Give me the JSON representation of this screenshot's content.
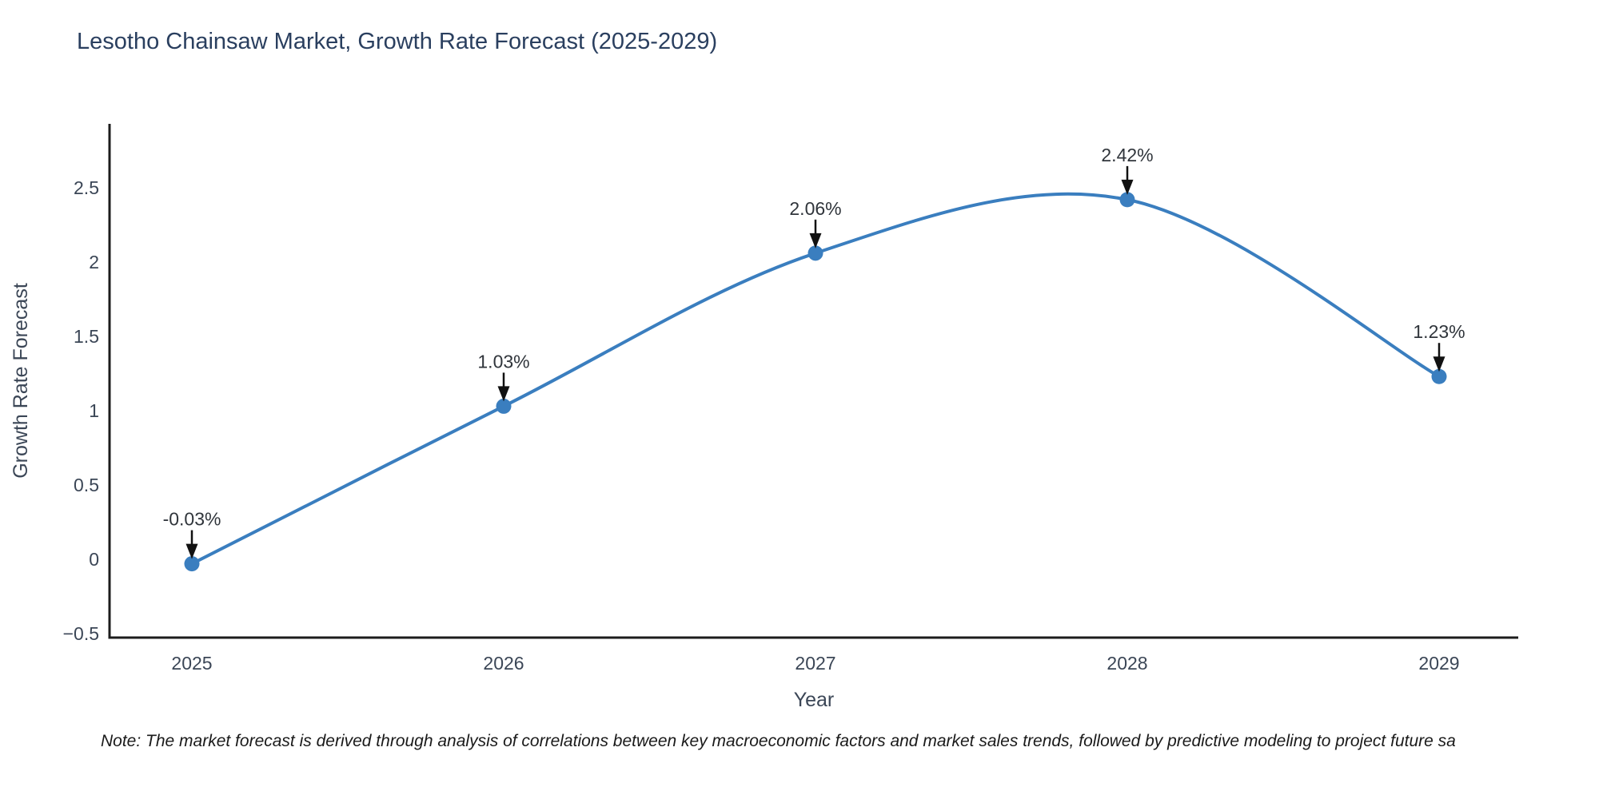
{
  "header": {
    "title": "Lesotho Chainsaw Market, Growth Rate Forecast (2025-2029)"
  },
  "note": {
    "text": "Note: The market forecast is derived through analysis of correlations between key macroeconomic factors and market sales trends, followed by predictive modeling to project future sa"
  },
  "chart_data": {
    "type": "line",
    "title": "Lesotho Chainsaw Market, Growth Rate Forecast (2025-2029)",
    "xlabel": "Year",
    "ylabel": "Growth Rate Forecast",
    "x": [
      2025,
      2026,
      2027,
      2028,
      2029
    ],
    "xtick_labels": [
      "2025",
      "2026",
      "2027",
      "2028",
      "2029"
    ],
    "series": [
      {
        "name": "Growth Rate Forecast",
        "values": [
          -0.03,
          1.03,
          2.06,
          2.42,
          1.23
        ],
        "point_labels": [
          "-0.03%",
          "1.03%",
          "2.06%",
          "2.42%",
          "1.23%"
        ]
      }
    ],
    "yticks": [
      -0.5,
      0,
      0.5,
      1,
      1.5,
      2,
      2.5
    ],
    "ytick_labels": [
      "−0.5",
      "0",
      "0.5",
      "1",
      "1.5",
      "2",
      "2.5"
    ],
    "ylim": [
      -0.53,
      2.93
    ],
    "grid": false,
    "legend": false,
    "line_shape": "spline",
    "annotation_arrows": true,
    "colors": {
      "line": "#3a7ebf",
      "marker": "#3a7ebf",
      "axis_line": "#1c1c1c",
      "title_text": "#2a3f5f",
      "axis_title_text": "#3b4656",
      "tick_text": "#3b4656",
      "annotation_text": "#30353b",
      "annotation_arrow": "#111111",
      "background": "#ffffff"
    }
  }
}
